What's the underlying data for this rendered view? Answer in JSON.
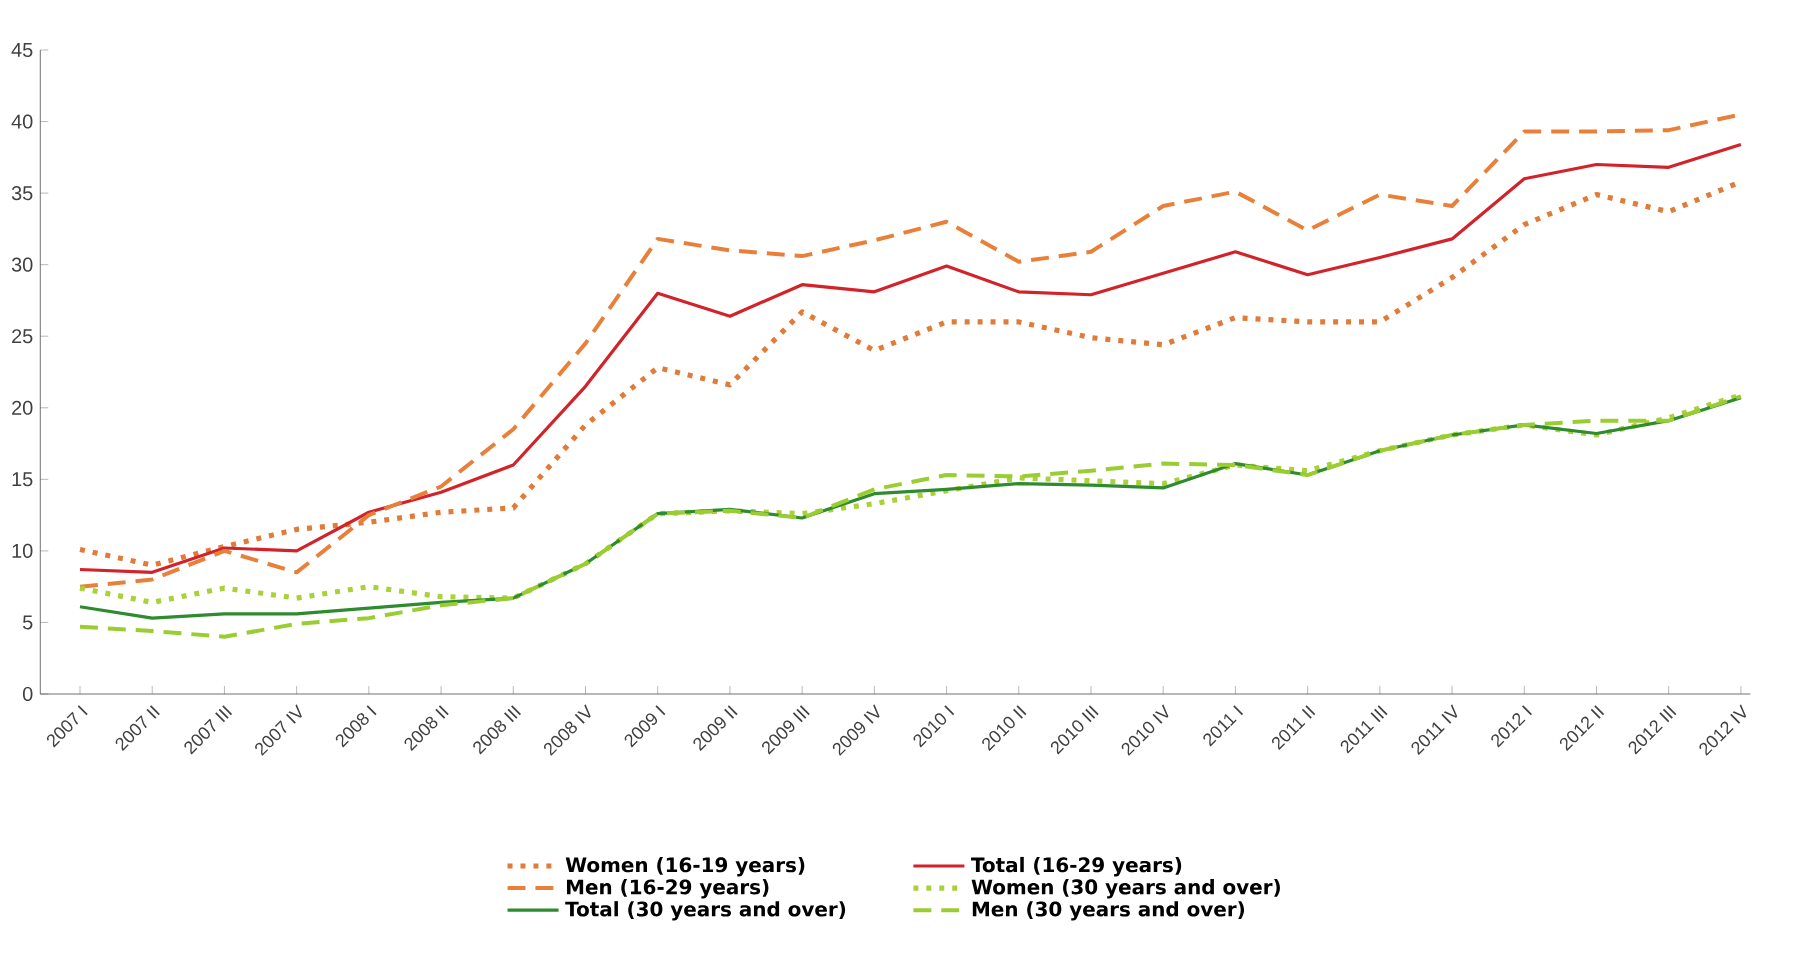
{
  "chart_data": {
    "type": "line",
    "categories": [
      "2007 I",
      "2007 II",
      "2007 III",
      "2007 IV",
      "2008 I",
      "2008 II",
      "2008 III",
      "2008 IV",
      "2009 I",
      "2009 II",
      "2009 III",
      "2009 IV",
      "2010 I",
      "2010 II",
      "2010 III",
      "2010 IV",
      "2011 I",
      "2011 II",
      "2011 III",
      "2011 IV",
      "2012 I",
      "2012 II",
      "2012 III",
      "2012 IV"
    ],
    "series": [
      {
        "name": "Women (16-19 years)",
        "color": "#e07b39",
        "line_style": "dotted",
        "values": [
          10.1,
          9.0,
          10.3,
          11.5,
          12.0,
          12.7,
          13.0,
          18.8,
          22.8,
          21.6,
          26.7,
          24.0,
          26.0,
          26.0,
          24.9,
          24.4,
          26.3,
          26.0,
          26.0,
          29.1,
          32.8,
          34.9,
          33.7,
          35.8
        ]
      },
      {
        "name": "Total (16-29 years)",
        "color": "#d2232a",
        "line_style": "solid",
        "values": [
          8.7,
          8.5,
          10.2,
          10.0,
          12.7,
          14.1,
          16.0,
          21.5,
          28.0,
          26.4,
          28.6,
          28.1,
          29.9,
          28.1,
          27.9,
          29.4,
          30.9,
          29.3,
          30.5,
          31.8,
          36.0,
          37.0,
          36.8,
          38.4
        ]
      },
      {
        "name": "Men (16-29 years)",
        "color": "#e8803a",
        "line_style": "dashed",
        "values": [
          7.5,
          8.0,
          10.0,
          8.5,
          12.5,
          14.5,
          18.5,
          24.5,
          31.8,
          31.0,
          30.6,
          31.7,
          33.0,
          30.2,
          30.9,
          34.1,
          35.1,
          32.4,
          34.9,
          34.1,
          39.3,
          39.3,
          39.4,
          40.5
        ]
      },
      {
        "name": "Women (30 years and over)",
        "color": "#a8d13a",
        "line_style": "dotted",
        "values": [
          7.4,
          6.4,
          7.4,
          6.7,
          7.5,
          6.8,
          6.7,
          9.1,
          12.6,
          12.8,
          12.6,
          13.3,
          14.2,
          15.1,
          14.9,
          14.7,
          16.0,
          15.6,
          17.0,
          18.1,
          18.8,
          18.1,
          19.3,
          20.9
        ]
      },
      {
        "name": "Total (30 years and over)",
        "color": "#2e8b2e",
        "line_style": "solid",
        "values": [
          6.1,
          5.3,
          5.6,
          5.6,
          6.0,
          6.4,
          6.7,
          9.1,
          12.6,
          12.9,
          12.3,
          14.0,
          14.3,
          14.7,
          14.6,
          14.4,
          16.1,
          15.3,
          17.0,
          18.1,
          18.8,
          18.2,
          19.1,
          20.7
        ]
      },
      {
        "name": "Men (30 years and over)",
        "color": "#9acd32",
        "line_style": "dashed",
        "values": [
          4.7,
          4.4,
          4.0,
          4.9,
          5.3,
          6.2,
          6.7,
          9.1,
          12.6,
          12.8,
          12.3,
          14.3,
          15.3,
          15.2,
          15.6,
          16.1,
          16.0,
          15.3,
          17.0,
          18.1,
          18.8,
          19.1,
          19.1,
          20.8
        ]
      }
    ],
    "ylim": [
      0,
      45
    ],
    "yticks": [
      0,
      5,
      10,
      15,
      20,
      25,
      30,
      35,
      40,
      45
    ],
    "grid": false,
    "legend": "bottom"
  }
}
